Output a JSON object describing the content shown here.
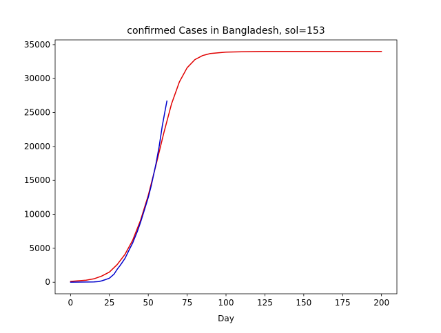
{
  "chart_data": {
    "type": "line",
    "title": "confirmed Cases in Bangladesh, sol=153",
    "xlabel": "Day",
    "ylabel": "",
    "xlim": [
      -9.9,
      209.9
    ],
    "ylim": [
      -1700,
      35700
    ],
    "xticks": [
      0,
      25,
      50,
      75,
      100,
      125,
      150,
      175,
      200
    ],
    "yticks": [
      0,
      5000,
      10000,
      15000,
      20000,
      25000,
      30000,
      35000
    ],
    "grid": false,
    "series": [
      {
        "color": "#e00000",
        "points": [
          [
            0,
            120
          ],
          [
            10,
            300
          ],
          [
            15,
            500
          ],
          [
            20,
            900
          ],
          [
            25,
            1500
          ],
          [
            30,
            2600
          ],
          [
            35,
            4100
          ],
          [
            40,
            6200
          ],
          [
            45,
            9100
          ],
          [
            50,
            12800
          ],
          [
            55,
            17300
          ],
          [
            60,
            22000
          ],
          [
            65,
            26300
          ],
          [
            70,
            29500
          ],
          [
            75,
            31600
          ],
          [
            80,
            32800
          ],
          [
            85,
            33400
          ],
          [
            90,
            33700
          ],
          [
            100,
            33900
          ],
          [
            110,
            33950
          ],
          [
            125,
            34000
          ],
          [
            150,
            34000
          ],
          [
            175,
            34000
          ],
          [
            200,
            34000
          ]
        ]
      },
      {
        "color": "#0000cc",
        "points": [
          [
            0,
            10
          ],
          [
            5,
            20
          ],
          [
            10,
            30
          ],
          [
            15,
            50
          ],
          [
            18,
            100
          ],
          [
            20,
            200
          ],
          [
            22,
            350
          ],
          [
            25,
            600
          ],
          [
            28,
            1200
          ],
          [
            30,
            1900
          ],
          [
            32,
            2500
          ],
          [
            35,
            3500
          ],
          [
            38,
            4900
          ],
          [
            40,
            5800
          ],
          [
            43,
            7500
          ],
          [
            45,
            8800
          ],
          [
            48,
            11000
          ],
          [
            50,
            12500
          ],
          [
            52,
            14300
          ],
          [
            55,
            17500
          ],
          [
            57,
            20000
          ],
          [
            59,
            23000
          ],
          [
            61,
            25500
          ],
          [
            62,
            26700
          ]
        ]
      }
    ]
  }
}
